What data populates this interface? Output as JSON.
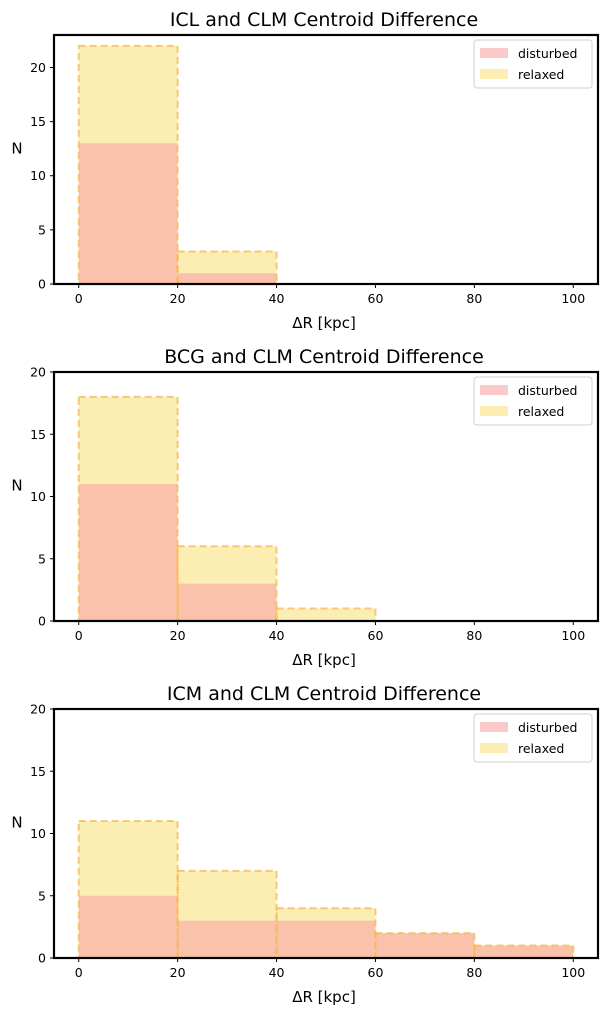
{
  "colors": {
    "disturbed_fill": "#f8a5a5",
    "relaxed_fill": "#fbe38a",
    "relaxed_edge": "#f5b850",
    "axes": "#000000"
  },
  "chart_data": [
    {
      "type": "bar",
      "title": "ICL and CLM Centroid Difference",
      "xlabel": "ΔR [kpc]",
      "ylabel": "N",
      "bin_edges": [
        0,
        20,
        40,
        60,
        80,
        100
      ],
      "xlim": [
        -5,
        105
      ],
      "ylim": [
        0,
        23
      ],
      "xticks": [
        0,
        20,
        40,
        60,
        80,
        100
      ],
      "yticks": [
        0,
        5,
        10,
        15,
        20
      ],
      "legend_position": "top-right",
      "series": [
        {
          "name": "disturbed",
          "values": [
            13,
            1,
            0,
            0,
            0
          ]
        },
        {
          "name": "relaxed",
          "values": [
            22,
            3,
            0,
            0,
            0
          ]
        }
      ]
    },
    {
      "type": "bar",
      "title": "BCG and CLM Centroid Difference",
      "xlabel": "ΔR [kpc]",
      "ylabel": "N",
      "bin_edges": [
        0,
        20,
        40,
        60,
        80,
        100
      ],
      "xlim": [
        -5,
        105
      ],
      "ylim": [
        0,
        20
      ],
      "xticks": [
        0,
        20,
        40,
        60,
        80,
        100
      ],
      "yticks": [
        0,
        5,
        10,
        15,
        20
      ],
      "legend_position": "top-right",
      "series": [
        {
          "name": "disturbed",
          "values": [
            11,
            3,
            0,
            0,
            0
          ]
        },
        {
          "name": "relaxed",
          "values": [
            18,
            6,
            1,
            0,
            0
          ]
        }
      ]
    },
    {
      "type": "bar",
      "title": "ICM and CLM Centroid Difference",
      "xlabel": "ΔR [kpc]",
      "ylabel": "N",
      "bin_edges": [
        0,
        20,
        40,
        60,
        80,
        100
      ],
      "xlim": [
        -5,
        105
      ],
      "ylim": [
        0,
        20
      ],
      "xticks": [
        0,
        20,
        40,
        60,
        80,
        100
      ],
      "yticks": [
        0,
        5,
        10,
        15,
        20
      ],
      "legend_position": "top-right",
      "series": [
        {
          "name": "disturbed",
          "values": [
            5,
            3,
            3,
            2,
            1
          ]
        },
        {
          "name": "relaxed",
          "values": [
            11,
            7,
            4,
            2,
            1
          ]
        }
      ]
    }
  ]
}
